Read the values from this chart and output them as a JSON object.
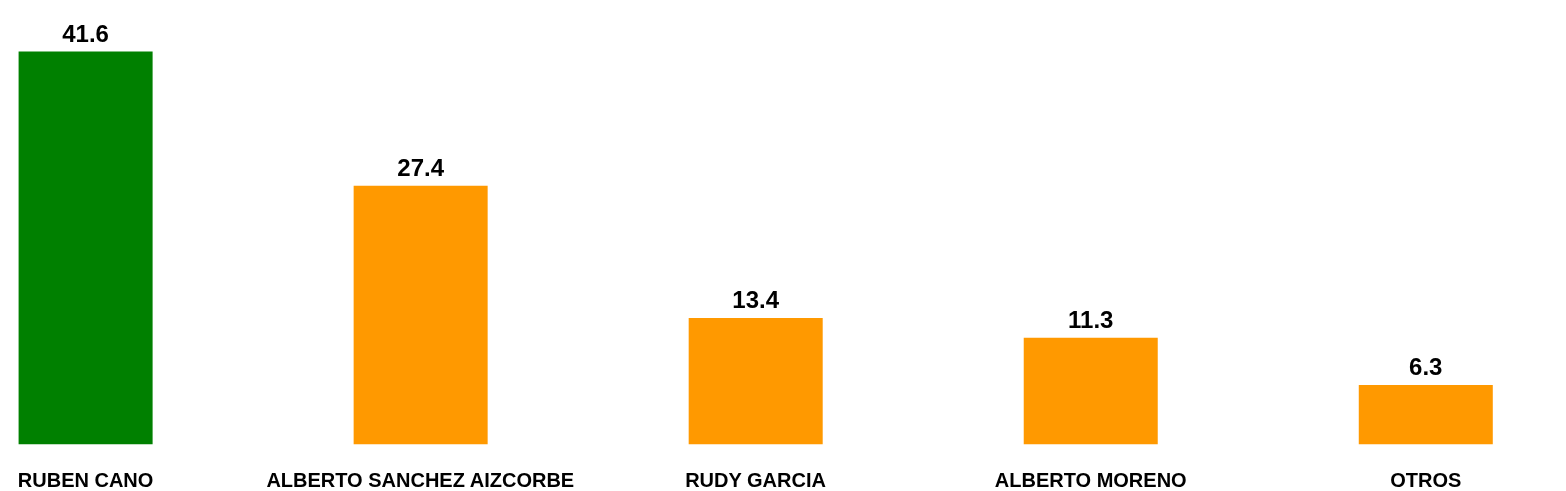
{
  "chart_data": {
    "type": "bar",
    "categories": [
      "RUBEN CANO",
      "ALBERTO SANCHEZ AIZCORBE",
      "RUDY GARCIA",
      "ALBERTO MORENO",
      "OTROS"
    ],
    "values": [
      41.6,
      27.4,
      13.4,
      11.3,
      6.3
    ],
    "colors": [
      "#008000",
      "#ff9900",
      "#ff9900",
      "#ff9900",
      "#ff9900"
    ],
    "data_labels": true,
    "tick_labels": "x"
  }
}
